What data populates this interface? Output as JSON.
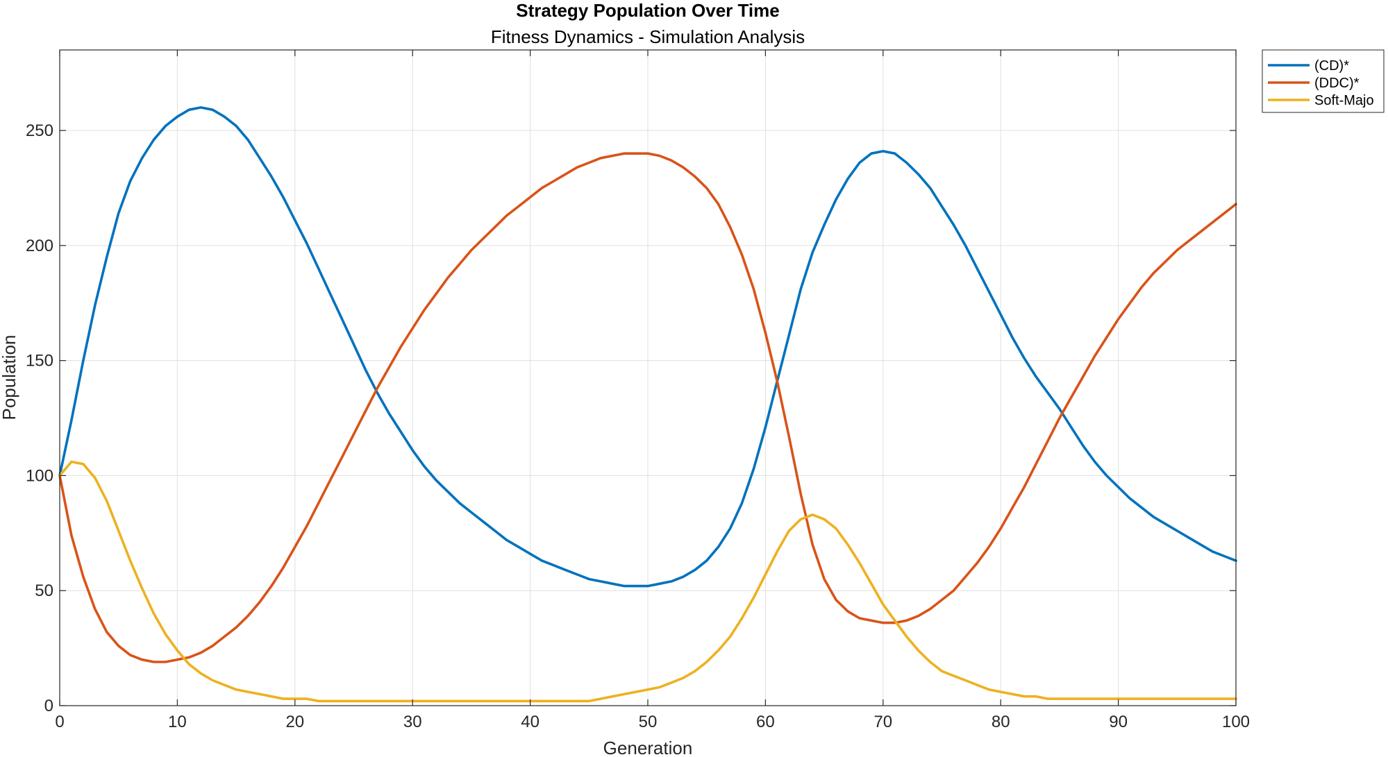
{
  "chart_data": {
    "type": "line",
    "title": "Strategy Population Over Time",
    "subtitle": "Fitness Dynamics - Simulation Analysis",
    "xlabel": "Generation",
    "ylabel": "Population",
    "xlim": [
      0,
      100
    ],
    "ylim": [
      0,
      285
    ],
    "xticks": [
      0,
      10,
      20,
      30,
      40,
      50,
      60,
      70,
      80,
      90,
      100
    ],
    "yticks": [
      0,
      50,
      100,
      150,
      200,
      250
    ],
    "grid": true,
    "legend_position": "outside-top-right",
    "x": [
      0,
      1,
      2,
      3,
      4,
      5,
      6,
      7,
      8,
      9,
      10,
      11,
      12,
      13,
      14,
      15,
      16,
      17,
      18,
      19,
      20,
      21,
      22,
      23,
      24,
      25,
      26,
      27,
      28,
      29,
      30,
      31,
      32,
      33,
      34,
      35,
      36,
      37,
      38,
      39,
      40,
      41,
      42,
      43,
      44,
      45,
      46,
      47,
      48,
      49,
      50,
      51,
      52,
      53,
      54,
      55,
      56,
      57,
      58,
      59,
      60,
      61,
      62,
      63,
      64,
      65,
      66,
      67,
      68,
      69,
      70,
      71,
      72,
      73,
      74,
      75,
      76,
      77,
      78,
      79,
      80,
      81,
      82,
      83,
      84,
      85,
      86,
      87,
      88,
      89,
      90,
      91,
      92,
      93,
      94,
      95,
      96,
      97,
      98,
      99,
      100
    ],
    "series": [
      {
        "name": "(CD)*",
        "color": "#0072BD",
        "values": [
          100,
          124,
          150,
          174,
          195,
          214,
          228,
          238,
          246,
          252,
          256,
          259,
          260,
          259,
          256,
          252,
          246,
          238,
          230,
          221,
          211,
          201,
          190,
          179,
          168,
          157,
          146,
          136,
          127,
          119,
          111,
          104,
          98,
          93,
          88,
          84,
          80,
          76,
          72,
          69,
          66,
          63,
          61,
          59,
          57,
          55,
          54,
          53,
          52,
          52,
          52,
          53,
          54,
          56,
          59,
          63,
          69,
          77,
          88,
          103,
          121,
          141,
          161,
          181,
          197,
          209,
          220,
          229,
          236,
          240,
          241,
          240,
          236,
          231,
          225,
          217,
          209,
          200,
          190,
          180,
          170,
          160,
          151,
          143,
          136,
          129,
          121,
          113,
          106,
          100,
          95,
          90,
          86,
          82,
          79,
          76,
          73,
          70,
          67,
          65,
          63
        ]
      },
      {
        "name": "(DDC)*",
        "color": "#D95319",
        "values": [
          100,
          74,
          56,
          42,
          32,
          26,
          22,
          20,
          19,
          19,
          20,
          21,
          23,
          26,
          30,
          34,
          39,
          45,
          52,
          60,
          69,
          78,
          88,
          98,
          108,
          118,
          128,
          138,
          147,
          156,
          164,
          172,
          179,
          186,
          192,
          198,
          203,
          208,
          213,
          217,
          221,
          225,
          228,
          231,
          234,
          236,
          238,
          239,
          240,
          240,
          240,
          239,
          237,
          234,
          230,
          225,
          218,
          208,
          196,
          181,
          162,
          141,
          117,
          92,
          70,
          55,
          46,
          41,
          38,
          37,
          36,
          36,
          37,
          39,
          42,
          46,
          50,
          56,
          62,
          69,
          77,
          86,
          95,
          105,
          115,
          125,
          134,
          143,
          152,
          160,
          168,
          175,
          182,
          188,
          193,
          198,
          202,
          206,
          210,
          214,
          218
        ]
      },
      {
        "name": "Soft-Majo",
        "color": "#EDB120",
        "values": [
          100,
          106,
          105,
          99,
          89,
          76,
          63,
          51,
          40,
          31,
          24,
          18,
          14,
          11,
          9,
          7,
          6,
          5,
          4,
          3,
          3,
          3,
          2,
          2,
          2,
          2,
          2,
          2,
          2,
          2,
          2,
          2,
          2,
          2,
          2,
          2,
          2,
          2,
          2,
          2,
          2,
          2,
          2,
          2,
          2,
          2,
          3,
          4,
          5,
          6,
          7,
          8,
          10,
          12,
          15,
          19,
          24,
          30,
          38,
          47,
          57,
          67,
          76,
          81,
          83,
          81,
          77,
          70,
          62,
          53,
          44,
          37,
          30,
          24,
          19,
          15,
          13,
          11,
          9,
          7,
          6,
          5,
          4,
          4,
          3,
          3,
          3,
          3,
          3,
          3,
          3,
          3,
          3,
          3,
          3,
          3,
          3,
          3,
          3,
          3,
          3
        ]
      }
    ]
  }
}
